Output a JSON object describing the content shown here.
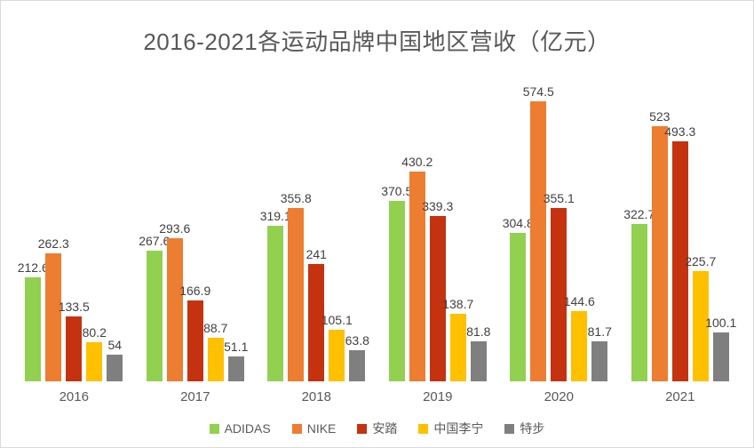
{
  "chart_data": {
    "type": "bar",
    "title": "2016-2021各运动品牌中国地区营收（亿元）",
    "categories": [
      "2016",
      "2017",
      "2018",
      "2019",
      "2020",
      "2021"
    ],
    "series": [
      {
        "name": "ADIDAS",
        "color": "#92D050",
        "values": [
          212.6,
          267.6,
          319.1,
          370.5,
          304.8,
          322.7
        ]
      },
      {
        "name": "NIKE",
        "color": "#ED7D31",
        "values": [
          262.3,
          293.6,
          355.8,
          430.2,
          574.5,
          523
        ]
      },
      {
        "name": "安踏",
        "color": "#C4320F",
        "values": [
          133.5,
          166.9,
          241,
          339.3,
          355.1,
          493.3
        ]
      },
      {
        "name": "中国李宁",
        "color": "#FFC000",
        "values": [
          80.2,
          88.7,
          105.1,
          138.7,
          144.6,
          225.7
        ]
      },
      {
        "name": "特步",
        "color": "#7F7F7F",
        "values": [
          54,
          51.1,
          63.8,
          81.8,
          81.7,
          100.1
        ]
      }
    ],
    "value_axis_max": 574.5,
    "grid": false,
    "axes_visible": false,
    "data_labels": true,
    "legend_position": "bottom"
  },
  "colors": {
    "background": "#FFFFFF",
    "border": "#D9D9D9",
    "title_text": "#595959",
    "data_label_text": "#404040",
    "axis_label_text": "#595959"
  }
}
